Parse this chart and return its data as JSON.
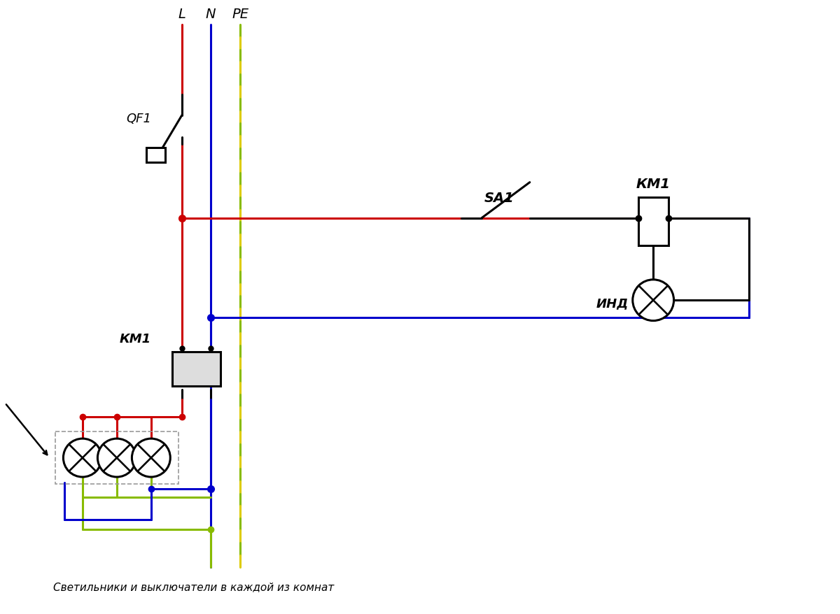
{
  "bg_color": "#ffffff",
  "red": "#cc0000",
  "blue": "#0000cc",
  "gy1": "#88bb00",
  "gy2": "#ddcc00",
  "black": "#000000",
  "gray": "#aaaaaa",
  "L_label": "L",
  "N_label": "N",
  "PE_label": "PE",
  "QF1_label": "QF1",
  "KM1_label_left": "КМ1",
  "KM1_label_right": "КМ1",
  "SA1_label": "SA1",
  "IND_label": "ИНД",
  "caption": "Светильники и выключатели в каждой из комнат",
  "lw": 2.0,
  "lw2": 2.2
}
